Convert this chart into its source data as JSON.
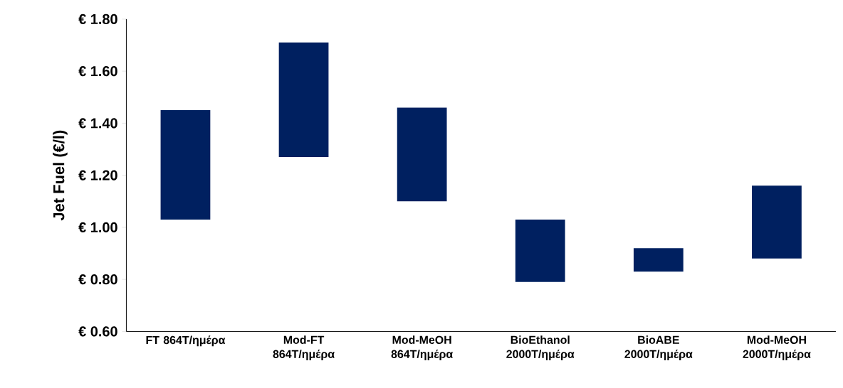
{
  "chart_data": {
    "type": "bar",
    "ylabel": "Jet Fuel (€/l)",
    "categories": [
      "FT 864T/ημέρα",
      "Mod-FT 864T/ημέρα",
      "Mod-MeOH 864T/ημέρα",
      "BioEthanol 2000T/ημέρα",
      "BioABE 2000T/ημέρα",
      "Mod-MeOH 2000T/ημέρα"
    ],
    "base": [
      1.03,
      1.27,
      1.1,
      0.79,
      0.83,
      0.88
    ],
    "values": [
      0.42,
      0.44,
      0.36,
      0.24,
      0.09,
      0.28
    ],
    "color": "#002060",
    "ylim": [
      0.6,
      1.8
    ],
    "yticks": [
      {
        "value": 0.6,
        "label": "€ 0.60"
      },
      {
        "value": 0.8,
        "label": "€ 0.80"
      },
      {
        "value": 1.0,
        "label": "€ 1.00"
      },
      {
        "value": 1.2,
        "label": "€ 1.20"
      },
      {
        "value": 1.4,
        "label": "€ 1.40"
      },
      {
        "value": 1.6,
        "label": "€ 1.60"
      },
      {
        "value": 1.8,
        "label": "€ 1.80"
      }
    ],
    "grid": false
  }
}
